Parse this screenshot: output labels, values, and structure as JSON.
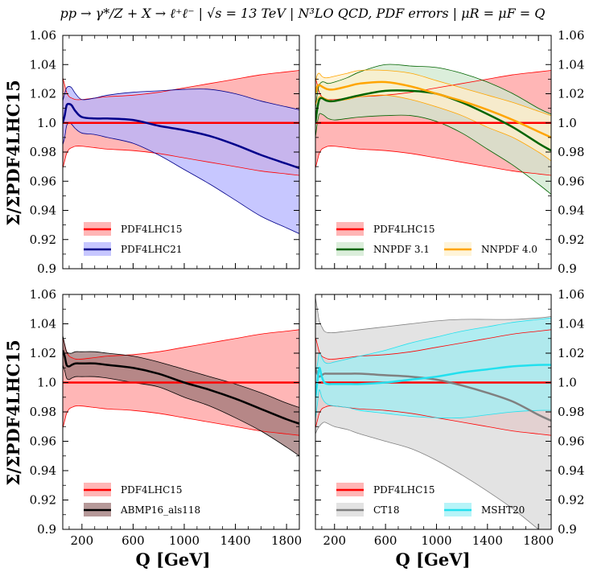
{
  "figure": {
    "title": "pp → γ*/Z + X → ℓ⁺ℓ⁻ | √s = 13 TeV | N³LO QCD, PDF errors | μR = μF = Q",
    "ylabel": "Σ/ΣPDF4LHC15",
    "xlabel": "Q [GeV]"
  },
  "colors": {
    "red": "#ff0000",
    "blue": "#00008b",
    "green": "#006400",
    "orange": "#ffa500",
    "black": "#000000",
    "gray": "#808080",
    "cyan": "#22e0ee"
  },
  "chart_data": [
    {
      "type": "area",
      "panel": "top-left",
      "xlim": [
        50,
        1900
      ],
      "ylim": [
        0.9,
        1.06
      ],
      "xticks": [
        "200",
        "600",
        "1000",
        "1400",
        "1800"
      ],
      "yticks": [
        "0.9",
        "0.92",
        "0.94",
        "0.96",
        "0.98",
        "1.0",
        "1.02",
        "1.04",
        "1.06"
      ],
      "legend_placement": "bottom-left",
      "series": [
        {
          "name": "PDF4LHC15",
          "color": "#ff0000",
          "fill": "#ffb6b6",
          "x": [
            50,
            65,
            80,
            100,
            120,
            150,
            200,
            300,
            400,
            600,
            800,
            1000,
            1200,
            1400,
            1600,
            1800,
            1900
          ],
          "central": [
            1.0,
            1.0,
            1.0,
            1.0,
            1.0,
            1.0,
            1.0,
            1.0,
            1.0,
            1.0,
            1.0,
            1.0,
            1.0,
            1.0,
            1.0,
            1.0,
            1.0
          ],
          "upper": [
            1.031,
            1.026,
            1.021,
            1.018,
            1.017,
            1.016,
            1.016,
            1.017,
            1.018,
            1.019,
            1.021,
            1.024,
            1.027,
            1.03,
            1.033,
            1.035,
            1.036
          ],
          "lower": [
            0.969,
            0.974,
            0.979,
            0.982,
            0.983,
            0.984,
            0.984,
            0.983,
            0.982,
            0.981,
            0.979,
            0.976,
            0.973,
            0.97,
            0.967,
            0.965,
            0.964
          ]
        },
        {
          "name": "PDF4LHC21",
          "color": "#00008b",
          "fill": "#b4b4ff",
          "x": [
            50,
            65,
            80,
            100,
            120,
            150,
            200,
            300,
            400,
            600,
            800,
            1000,
            1200,
            1400,
            1600,
            1800,
            1900
          ],
          "central": [
            1.0,
            1.005,
            1.012,
            1.013,
            1.012,
            1.008,
            1.004,
            1.003,
            1.003,
            1.002,
            0.998,
            0.995,
            0.991,
            0.985,
            0.978,
            0.972,
            0.969
          ],
          "upper": [
            1.015,
            1.02,
            1.024,
            1.025,
            1.024,
            1.02,
            1.016,
            1.017,
            1.019,
            1.021,
            1.022,
            1.023,
            1.023,
            1.02,
            1.015,
            1.011,
            1.009
          ],
          "lower": [
            0.985,
            0.99,
            0.998,
            1.0,
            0.999,
            0.996,
            0.993,
            0.992,
            0.99,
            0.986,
            0.978,
            0.968,
            0.958,
            0.947,
            0.936,
            0.928,
            0.924
          ]
        }
      ]
    },
    {
      "type": "area",
      "panel": "top-right",
      "xlim": [
        50,
        1900
      ],
      "ylim": [
        0.9,
        1.06
      ],
      "xticks": [
        "200",
        "600",
        "1000",
        "1400",
        "1800"
      ],
      "yticks": [
        "0.9",
        "0.92",
        "0.94",
        "0.96",
        "0.98",
        "1.0",
        "1.02",
        "1.04",
        "1.06"
      ],
      "legend_placement": "bottom-left",
      "series": [
        {
          "name": "PDF4LHC15",
          "color": "#ff0000",
          "fill": "#ffb6b6",
          "x": [
            50,
            65,
            80,
            100,
            120,
            150,
            200,
            300,
            400,
            600,
            800,
            1000,
            1200,
            1400,
            1600,
            1800,
            1900
          ],
          "central": [
            1.0,
            1.0,
            1.0,
            1.0,
            1.0,
            1.0,
            1.0,
            1.0,
            1.0,
            1.0,
            1.0,
            1.0,
            1.0,
            1.0,
            1.0,
            1.0,
            1.0
          ],
          "upper": [
            1.031,
            1.026,
            1.021,
            1.018,
            1.017,
            1.016,
            1.016,
            1.017,
            1.018,
            1.019,
            1.021,
            1.024,
            1.027,
            1.03,
            1.033,
            1.035,
            1.036
          ],
          "lower": [
            0.969,
            0.974,
            0.979,
            0.982,
            0.983,
            0.984,
            0.984,
            0.983,
            0.982,
            0.981,
            0.979,
            0.976,
            0.973,
            0.97,
            0.967,
            0.965,
            0.964
          ]
        },
        {
          "name": "NNPDF 3.1",
          "color": "#006400",
          "fill": "#cfe8cf",
          "x": [
            50,
            65,
            80,
            100,
            120,
            150,
            200,
            300,
            400,
            600,
            800,
            1000,
            1200,
            1400,
            1600,
            1800,
            1900
          ],
          "central": [
            1.0,
            1.01,
            1.016,
            1.017,
            1.016,
            1.015,
            1.015,
            1.017,
            1.019,
            1.022,
            1.022,
            1.02,
            1.014,
            1.006,
            0.997,
            0.986,
            0.981
          ],
          "upper": [
            1.01,
            1.02,
            1.026,
            1.028,
            1.028,
            1.027,
            1.028,
            1.031,
            1.035,
            1.04,
            1.039,
            1.038,
            1.034,
            1.028,
            1.02,
            1.01,
            1.006
          ],
          "lower": [
            0.99,
            1.0,
            1.006,
            1.006,
            1.005,
            1.003,
            1.002,
            1.003,
            1.004,
            1.005,
            1.005,
            1.001,
            0.993,
            0.982,
            0.971,
            0.958,
            0.951
          ]
        },
        {
          "name": "NNPDF 4.0",
          "color": "#ffa500",
          "fill": "#fff0cc",
          "x": [
            50,
            65,
            80,
            100,
            120,
            150,
            200,
            300,
            400,
            600,
            800,
            1000,
            1200,
            1400,
            1600,
            1800,
            1900
          ],
          "central": [
            1.02,
            1.025,
            1.026,
            1.025,
            1.024,
            1.023,
            1.023,
            1.025,
            1.027,
            1.028,
            1.025,
            1.02,
            1.015,
            1.009,
            1.002,
            0.994,
            0.99
          ],
          "upper": [
            1.028,
            1.033,
            1.034,
            1.032,
            1.031,
            1.031,
            1.032,
            1.034,
            1.036,
            1.036,
            1.034,
            1.029,
            1.024,
            1.019,
            1.014,
            1.008,
            1.005
          ],
          "lower": [
            1.012,
            1.016,
            1.018,
            1.018,
            1.017,
            1.016,
            1.015,
            1.016,
            1.018,
            1.019,
            1.016,
            1.011,
            1.005,
            0.997,
            0.99,
            0.98,
            0.974
          ]
        }
      ]
    },
    {
      "type": "area",
      "panel": "bottom-left",
      "xlim": [
        50,
        1900
      ],
      "ylim": [
        0.9,
        1.06
      ],
      "xticks": [
        "200",
        "600",
        "1000",
        "1400",
        "1800"
      ],
      "yticks": [
        "0.9",
        "0.92",
        "0.94",
        "0.96",
        "0.98",
        "1.0",
        "1.02",
        "1.04",
        "1.06"
      ],
      "legend_placement": "bottom-left",
      "series": [
        {
          "name": "PDF4LHC15",
          "color": "#ff0000",
          "fill": "#ffb6b6",
          "x": [
            50,
            65,
            80,
            100,
            120,
            150,
            200,
            300,
            400,
            600,
            800,
            1000,
            1200,
            1400,
            1600,
            1800,
            1900
          ],
          "central": [
            1.0,
            1.0,
            1.0,
            1.0,
            1.0,
            1.0,
            1.0,
            1.0,
            1.0,
            1.0,
            1.0,
            1.0,
            1.0,
            1.0,
            1.0,
            1.0,
            1.0
          ],
          "upper": [
            1.031,
            1.026,
            1.021,
            1.018,
            1.017,
            1.016,
            1.016,
            1.017,
            1.018,
            1.019,
            1.021,
            1.024,
            1.027,
            1.03,
            1.033,
            1.035,
            1.036
          ],
          "lower": [
            0.969,
            0.974,
            0.979,
            0.982,
            0.983,
            0.984,
            0.984,
            0.983,
            0.982,
            0.981,
            0.979,
            0.976,
            0.973,
            0.97,
            0.967,
            0.965,
            0.964
          ]
        },
        {
          "name": "ABMP16_als118",
          "color": "#000000",
          "fill": "#9e7777",
          "x": [
            50,
            65,
            80,
            100,
            120,
            150,
            200,
            300,
            400,
            600,
            800,
            1000,
            1200,
            1400,
            1600,
            1800,
            1900
          ],
          "central": [
            1.022,
            1.018,
            1.012,
            1.011,
            1.012,
            1.013,
            1.013,
            1.013,
            1.012,
            1.01,
            1.006,
            1.0,
            0.995,
            0.989,
            0.982,
            0.975,
            0.972
          ],
          "upper": [
            1.032,
            1.026,
            1.021,
            1.02,
            1.02,
            1.021,
            1.021,
            1.021,
            1.02,
            1.018,
            1.014,
            1.009,
            1.004,
            0.999,
            0.993,
            0.986,
            0.983
          ],
          "lower": [
            1.012,
            1.008,
            1.003,
            1.002,
            1.003,
            1.004,
            1.004,
            1.004,
            1.003,
            1.0,
            0.997,
            0.99,
            0.984,
            0.976,
            0.967,
            0.956,
            0.95
          ]
        }
      ]
    },
    {
      "type": "area",
      "panel": "bottom-right",
      "xlim": [
        50,
        1900
      ],
      "ylim": [
        0.9,
        1.06
      ],
      "xticks": [
        "200",
        "600",
        "1000",
        "1400",
        "1800"
      ],
      "yticks": [
        "0.9",
        "0.92",
        "0.94",
        "0.96",
        "0.98",
        "1.0",
        "1.02",
        "1.04",
        "1.06"
      ],
      "legend_placement": "bottom-left",
      "series": [
        {
          "name": "PDF4LHC15",
          "color": "#ff0000",
          "fill": "#ffb6b6",
          "x": [
            50,
            65,
            80,
            100,
            120,
            150,
            200,
            300,
            400,
            600,
            800,
            1000,
            1200,
            1400,
            1600,
            1800,
            1900
          ],
          "central": [
            1.0,
            1.0,
            1.0,
            1.0,
            1.0,
            1.0,
            1.0,
            1.0,
            1.0,
            1.0,
            1.0,
            1.0,
            1.0,
            1.0,
            1.0,
            1.0,
            1.0
          ],
          "upper": [
            1.031,
            1.026,
            1.021,
            1.018,
            1.017,
            1.016,
            1.016,
            1.017,
            1.018,
            1.019,
            1.021,
            1.024,
            1.027,
            1.03,
            1.033,
            1.035,
            1.036
          ],
          "lower": [
            0.969,
            0.974,
            0.979,
            0.982,
            0.983,
            0.984,
            0.984,
            0.983,
            0.982,
            0.981,
            0.979,
            0.976,
            0.973,
            0.97,
            0.967,
            0.965,
            0.964
          ]
        },
        {
          "name": "CT18",
          "color": "#808080",
          "fill": "#dadada",
          "x": [
            50,
            65,
            80,
            100,
            120,
            150,
            200,
            300,
            400,
            600,
            800,
            1000,
            1200,
            1400,
            1600,
            1800,
            1900
          ],
          "central": [
            1.01,
            1.006,
            1.004,
            1.005,
            1.006,
            1.006,
            1.006,
            1.006,
            1.006,
            1.005,
            1.004,
            1.002,
            0.998,
            0.993,
            0.987,
            0.978,
            0.974
          ],
          "upper": [
            1.058,
            1.05,
            1.042,
            1.038,
            1.035,
            1.034,
            1.034,
            1.035,
            1.036,
            1.038,
            1.04,
            1.042,
            1.043,
            1.043,
            1.043,
            1.044,
            1.045
          ],
          "lower": [
            0.965,
            0.968,
            0.97,
            0.972,
            0.973,
            0.972,
            0.97,
            0.968,
            0.965,
            0.96,
            0.955,
            0.947,
            0.937,
            0.926,
            0.914,
            0.9,
            0.893
          ]
        },
        {
          "name": "MSHT20",
          "color": "#22e0ee",
          "fill": "#9ff0f6",
          "x": [
            50,
            65,
            80,
            100,
            120,
            150,
            200,
            300,
            400,
            600,
            800,
            1000,
            1200,
            1400,
            1600,
            1800,
            1900
          ],
          "central": [
            0.99,
            1.0,
            1.01,
            1.004,
            1.0,
            0.999,
            0.999,
            0.999,
            0.999,
            1.0,
            1.002,
            1.004,
            1.007,
            1.009,
            1.011,
            1.012,
            1.012
          ],
          "upper": [
            1.005,
            1.012,
            1.02,
            1.017,
            1.014,
            1.013,
            1.014,
            1.016,
            1.018,
            1.022,
            1.027,
            1.031,
            1.035,
            1.038,
            1.041,
            1.043,
            1.044
          ],
          "lower": [
            0.975,
            0.985,
            0.995,
            0.99,
            0.987,
            0.985,
            0.984,
            0.983,
            0.981,
            0.979,
            0.977,
            0.976,
            0.976,
            0.978,
            0.98,
            0.981,
            0.981
          ]
        }
      ]
    }
  ]
}
